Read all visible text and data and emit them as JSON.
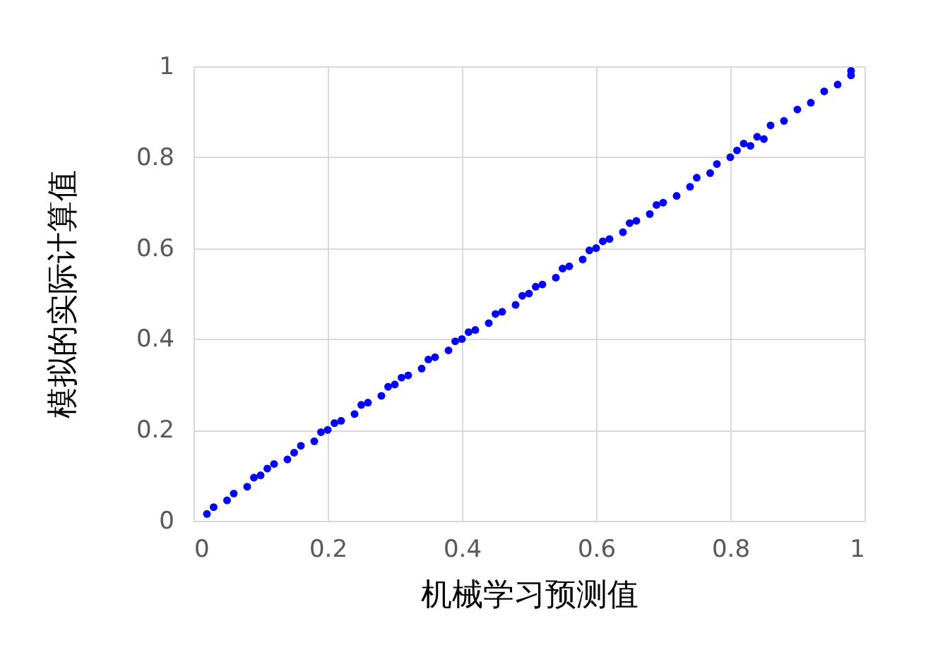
{
  "chart_data": {
    "type": "scatter",
    "xlabel": "机械学习预测值",
    "ylabel": "模拟的实际计算值",
    "x": [
      0.02,
      0.03,
      0.05,
      0.06,
      0.08,
      0.09,
      0.1,
      0.11,
      0.12,
      0.14,
      0.15,
      0.16,
      0.18,
      0.19,
      0.2,
      0.21,
      0.22,
      0.24,
      0.25,
      0.26,
      0.28,
      0.29,
      0.3,
      0.31,
      0.32,
      0.34,
      0.35,
      0.36,
      0.38,
      0.39,
      0.4,
      0.41,
      0.42,
      0.44,
      0.45,
      0.46,
      0.48,
      0.49,
      0.5,
      0.51,
      0.52,
      0.54,
      0.55,
      0.56,
      0.58,
      0.59,
      0.6,
      0.61,
      0.62,
      0.64,
      0.65,
      0.66,
      0.68,
      0.69,
      0.7,
      0.72,
      0.74,
      0.75,
      0.77,
      0.78,
      0.8,
      0.81,
      0.82,
      0.83,
      0.84,
      0.85,
      0.86,
      0.88,
      0.9,
      0.92,
      0.94,
      0.96,
      0.98,
      0.98
    ],
    "series": [
      {
        "color": "#0000ff",
        "values": [
          0.015,
          0.03,
          0.045,
          0.06,
          0.075,
          0.095,
          0.1,
          0.115,
          0.125,
          0.135,
          0.15,
          0.165,
          0.175,
          0.195,
          0.2,
          0.215,
          0.22,
          0.235,
          0.255,
          0.26,
          0.275,
          0.295,
          0.3,
          0.315,
          0.32,
          0.335,
          0.355,
          0.36,
          0.375,
          0.395,
          0.4,
          0.415,
          0.42,
          0.435,
          0.455,
          0.46,
          0.475,
          0.495,
          0.5,
          0.515,
          0.52,
          0.535,
          0.555,
          0.56,
          0.575,
          0.595,
          0.6,
          0.615,
          0.62,
          0.635,
          0.655,
          0.66,
          0.675,
          0.695,
          0.7,
          0.715,
          0.735,
          0.755,
          0.765,
          0.785,
          0.8,
          0.815,
          0.83,
          0.825,
          0.845,
          0.84,
          0.87,
          0.88,
          0.905,
          0.92,
          0.945,
          0.96,
          0.98,
          0.99
        ]
      }
    ],
    "xlim": [
      0,
      1
    ],
    "ylim": [
      0,
      1
    ],
    "xticks": [
      0,
      0.2,
      0.4,
      0.6,
      0.8,
      1
    ],
    "yticks": [
      0,
      0.2,
      0.4,
      0.6,
      0.8,
      1
    ],
    "grid": true,
    "marker": "circle"
  }
}
